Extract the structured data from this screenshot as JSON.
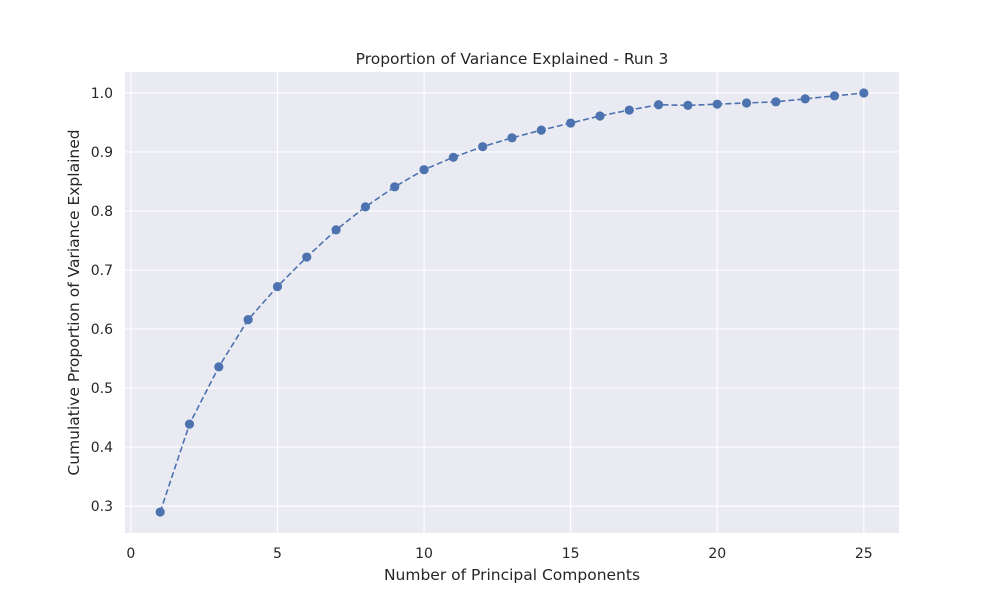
{
  "chart_data": {
    "type": "line",
    "title": "Proportion of Variance Explained - Run 3",
    "xlabel": "Number of Principal Components",
    "ylabel": "Cumulative Proportion of Variance Explained",
    "x": [
      1,
      2,
      3,
      4,
      5,
      6,
      7,
      8,
      9,
      10,
      11,
      12,
      13,
      14,
      15,
      16,
      17,
      18,
      19,
      20,
      21,
      22,
      23,
      24,
      25
    ],
    "series": [
      {
        "values": [
          0.29,
          0.439,
          0.536,
          0.616,
          0.672,
          0.722,
          0.768,
          0.807,
          0.841,
          0.87,
          0.891,
          0.909,
          0.924,
          0.937,
          0.949,
          0.961,
          0.971,
          0.98,
          0.979,
          0.981,
          0.983,
          0.985,
          0.99,
          0.995,
          1.0
        ],
        "color": "#4c72b0",
        "line_style": "dashed",
        "marker": "circle"
      }
    ],
    "xlim": [
      -0.2,
      26.2
    ],
    "ylim": [
      0.2545,
      1.0355
    ],
    "xticks": [
      0,
      5,
      10,
      15,
      20,
      25
    ],
    "yticks": [
      0.3,
      0.4,
      0.5,
      0.6,
      0.7,
      0.8,
      0.9,
      1.0
    ],
    "xtick_labels": [
      "0",
      "5",
      "10",
      "15",
      "20",
      "25"
    ],
    "ytick_labels": [
      "0.3",
      "0.4",
      "0.5",
      "0.6",
      "0.7",
      "0.8",
      "0.9",
      "1.0"
    ],
    "grid": true,
    "background_color": "#eaeaf2",
    "grid_color": "#ffffff"
  }
}
